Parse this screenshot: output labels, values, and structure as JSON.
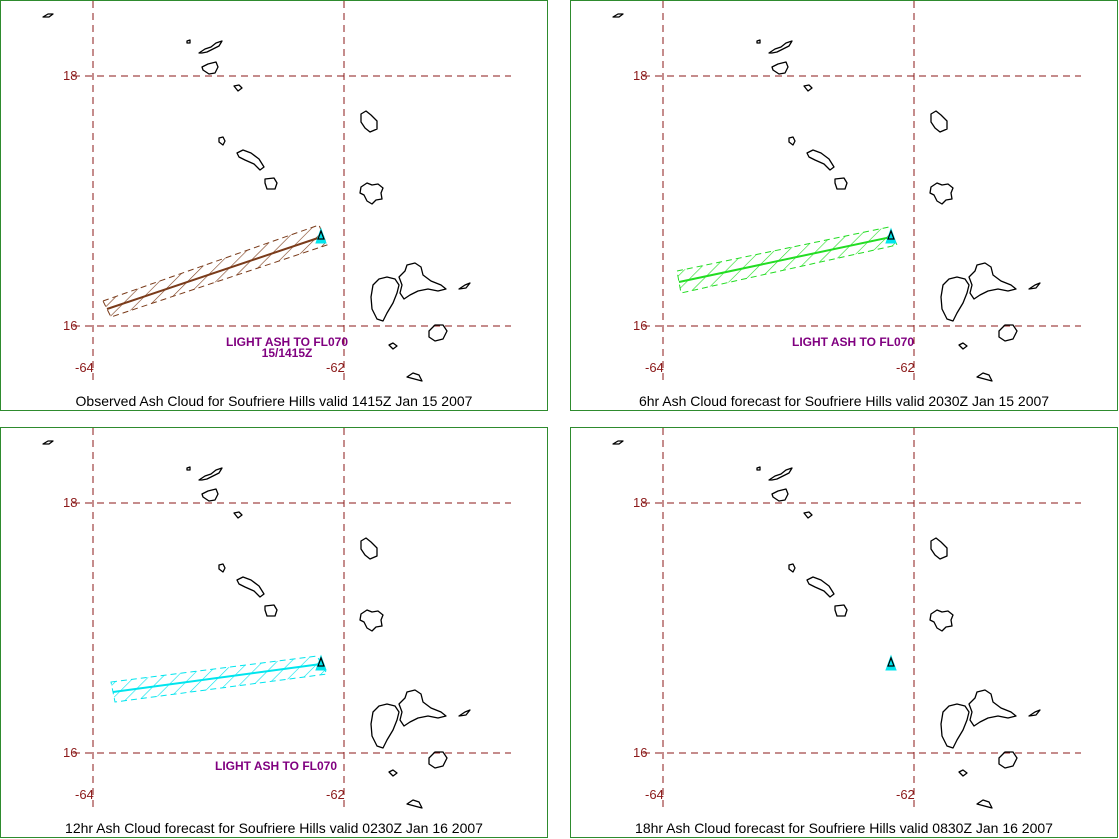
{
  "map_style": {
    "grid_color": "#8b1a1a",
    "tick_label_color": "#8b1a1a",
    "coast_color": "#000000",
    "annotation_color": "#800080",
    "panel_border_color": "#2e8b2e",
    "volcano_marker_color": "#00e5ee"
  },
  "axes": {
    "lat_labels": [
      "18",
      "16"
    ],
    "lon_labels": [
      "-64",
      "-62"
    ]
  },
  "panels": [
    {
      "caption": "Observed Ash Cloud for Soufriere  Hills valid 1415Z Jan 15 2007",
      "ash_color": "#7a3b1a",
      "annotation_lines": [
        "LIGHT ASH TO FL070",
        "15/1415Z"
      ],
      "ash_extent": "long"
    },
    {
      "caption": "6hr Ash Cloud forecast for Soufriere  Hills valid 2030Z Jan 15 2007",
      "ash_color": "#22dd22",
      "annotation_lines": [
        "LIGHT ASH TO FL070"
      ],
      "ash_extent": "medium"
    },
    {
      "caption": "12hr Ash Cloud forecast for Soufriere  Hills valid 0230Z Jan 16 2007",
      "ash_color": "#00e5ee",
      "annotation_lines": [
        "LIGHT ASH TO FL070"
      ],
      "ash_extent": "long-flat"
    },
    {
      "caption": "18hr Ash Cloud forecast for Soufriere  Hills valid 0830Z Jan 16 2007",
      "ash_color": "#00e5ee",
      "annotation_lines": [],
      "ash_extent": "none"
    }
  ]
}
